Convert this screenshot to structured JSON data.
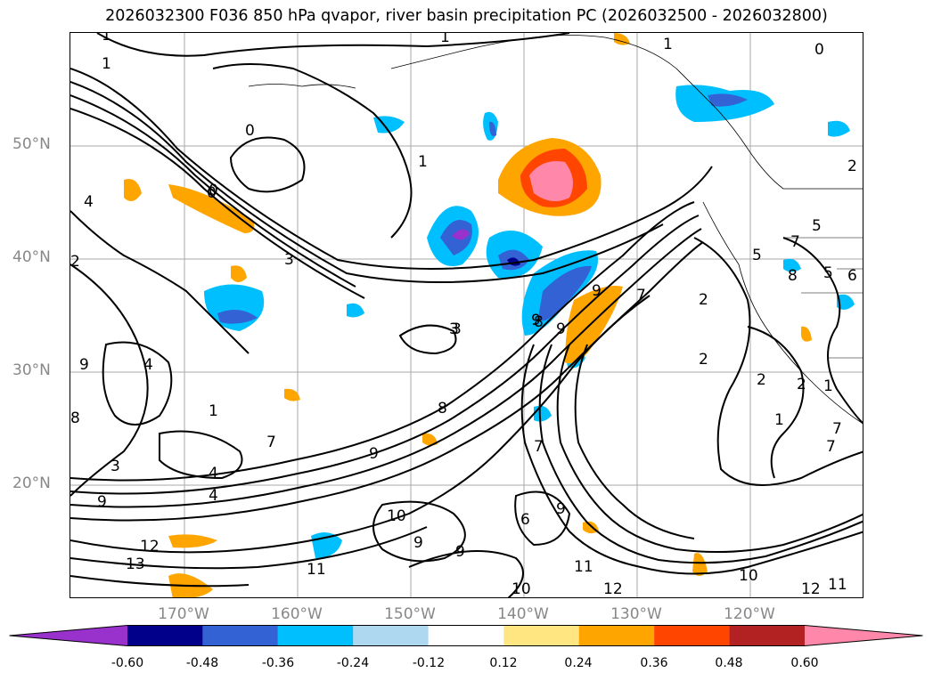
{
  "title": "2026032300 F036 850 hPa qvapor, river basin precipitation PC (2026032500 - 2026032800)",
  "lat_labels": [
    "50°N",
    "40°N",
    "30°N",
    "20°N"
  ],
  "lon_labels": [
    "170°W",
    "160°W",
    "150°W",
    "140°W",
    "130°W",
    "120°W"
  ],
  "colorbar": {
    "colors": [
      "#9932cc",
      "#00008b",
      "#3262d4",
      "#00bfff",
      "#add8f0",
      "#ffffff",
      "#ffe680",
      "#ffa500",
      "#ff4500",
      "#b22222",
      "#ff88aa"
    ],
    "ticks": [
      "-0.60",
      "-0.48",
      "-0.36",
      "-0.24",
      "-0.12",
      "0.12",
      "0.24",
      "0.36",
      "0.48",
      "0.60"
    ]
  },
  "contour_labels": [
    "1",
    "1",
    "1",
    "1",
    "0",
    "0",
    "0",
    "1",
    "2",
    "5",
    "7",
    "5",
    "6",
    "8",
    "5",
    "2",
    "2",
    "3",
    "3",
    "4",
    "0",
    "2",
    "4",
    "9",
    "8",
    "8",
    "9",
    "9",
    "9",
    "7",
    "7",
    "7",
    "9",
    "4",
    "1",
    "1",
    "3",
    "3",
    "4",
    "9",
    "12",
    "13",
    "11",
    "10",
    "9",
    "9",
    "10",
    "11",
    "12",
    "10",
    "12",
    "11",
    "8",
    "6",
    "9",
    "2",
    "1",
    "7",
    "2",
    "7"
  ]
}
